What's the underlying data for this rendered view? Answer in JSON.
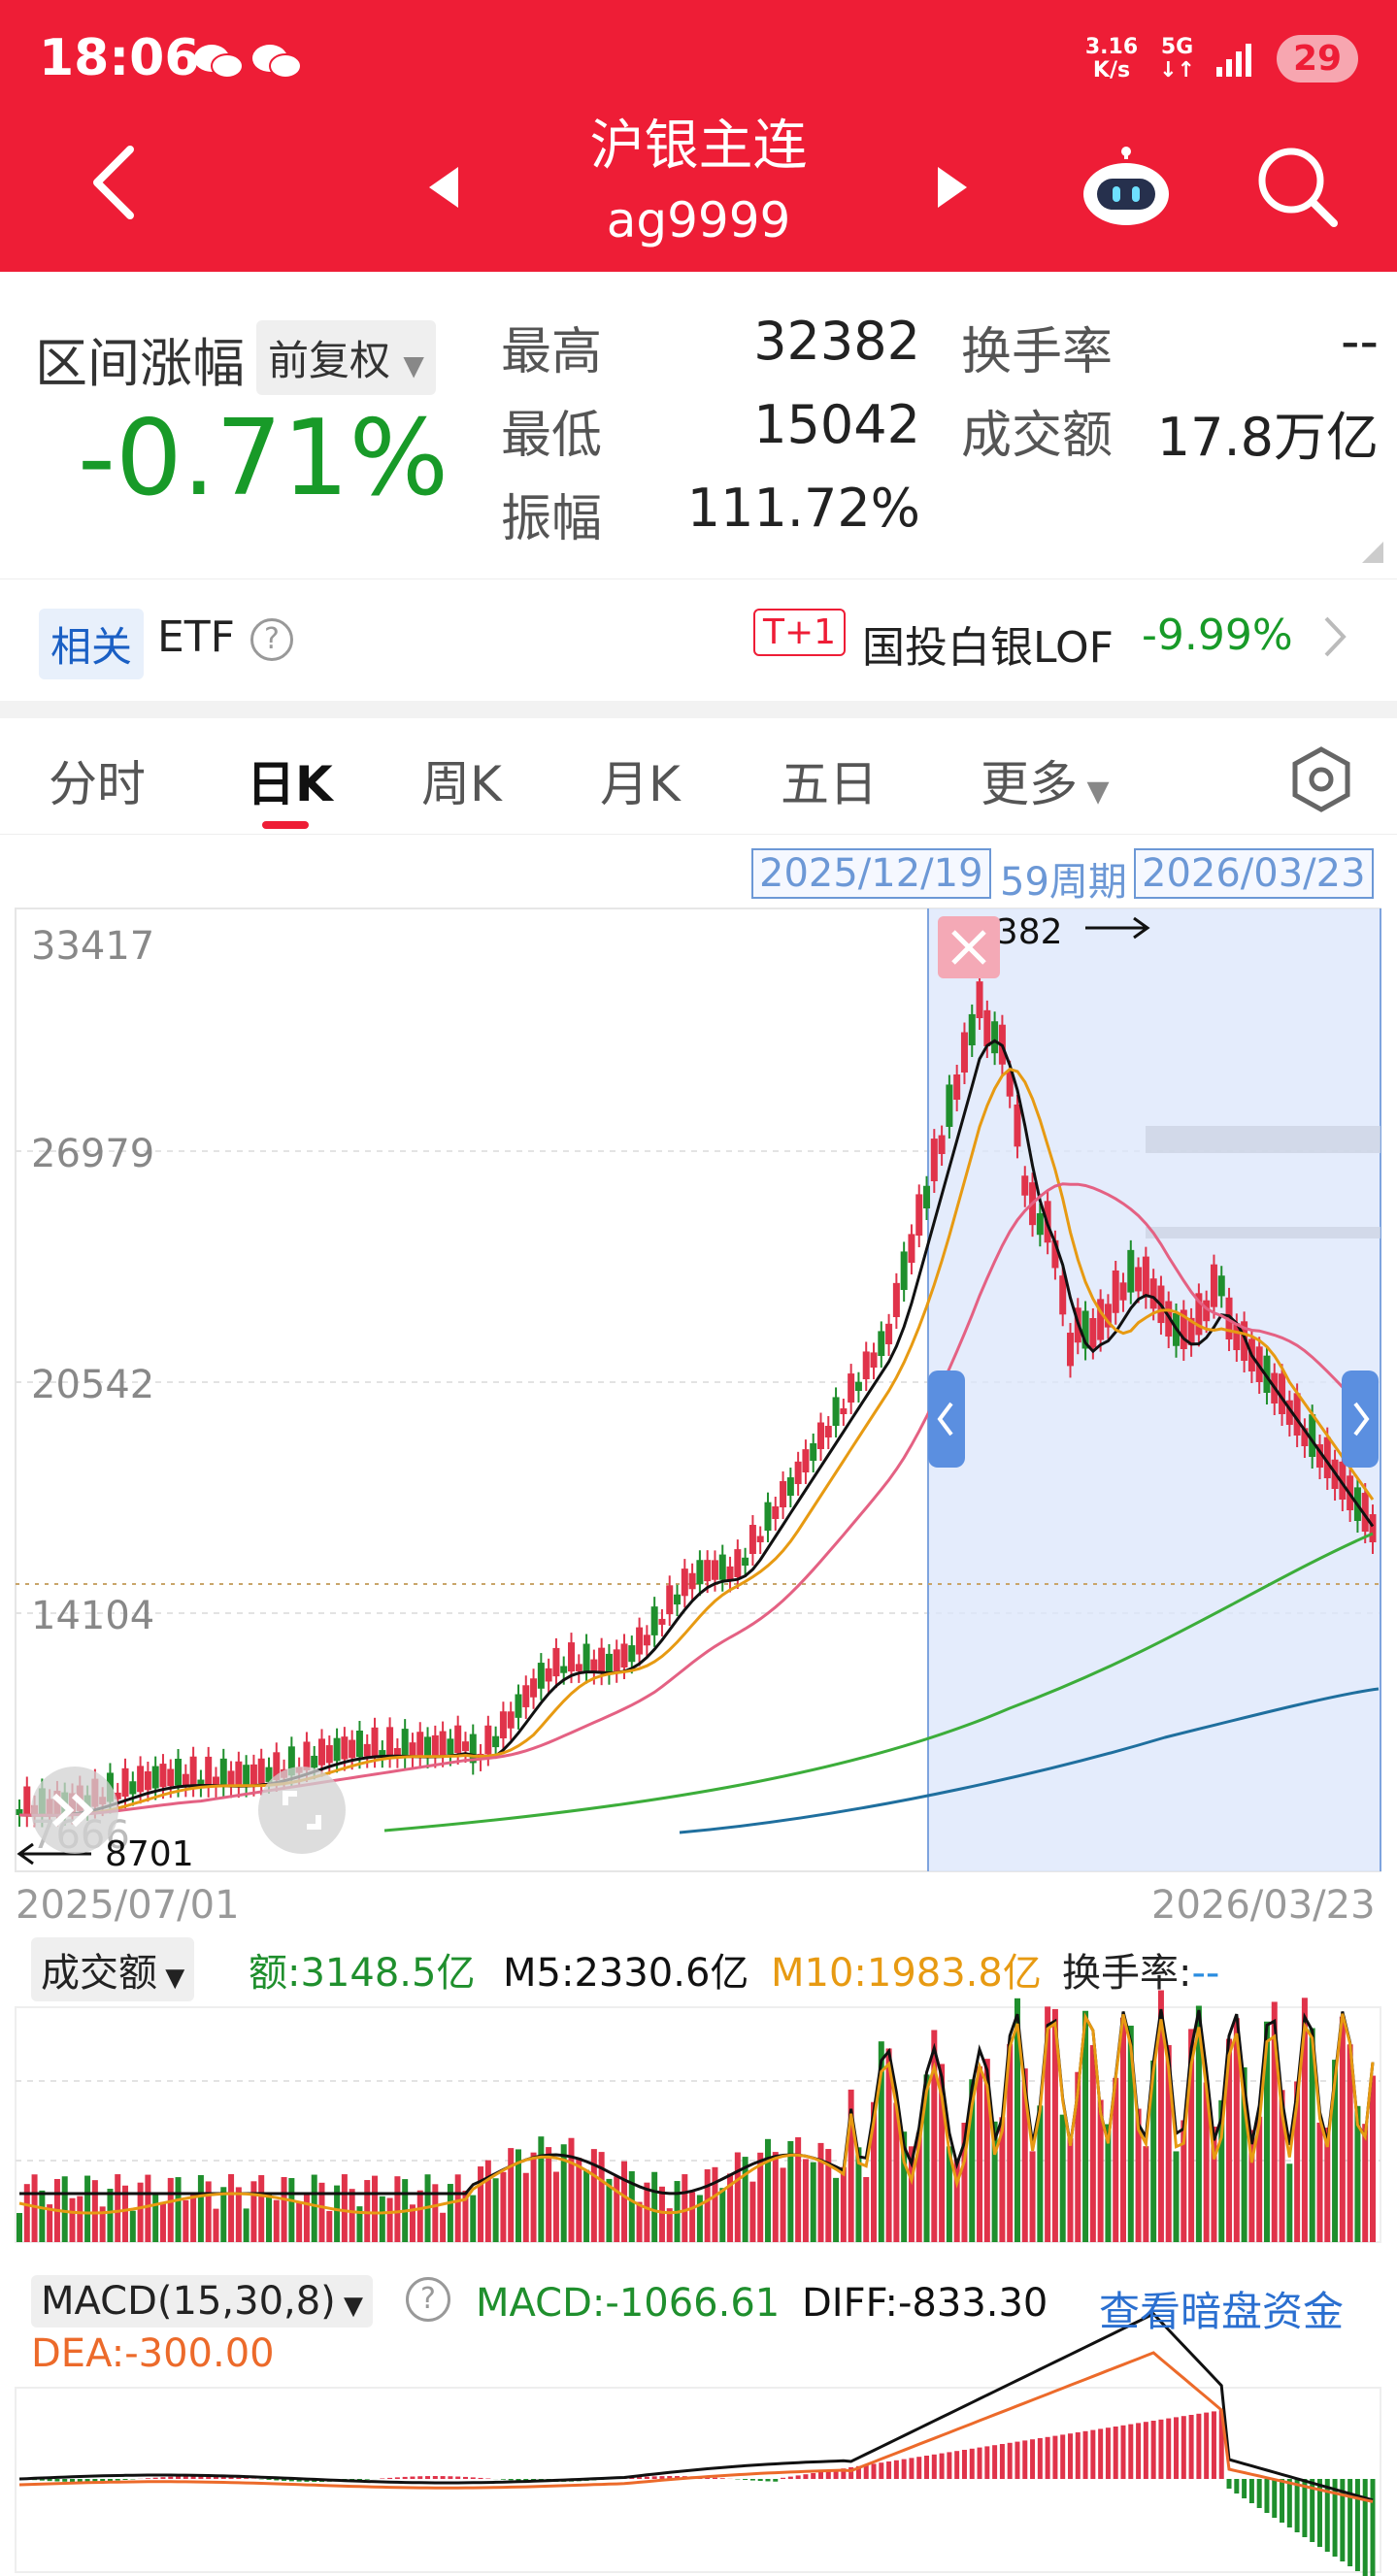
{
  "status_bar": {
    "time": "18:06",
    "net_speed_value": "3.16",
    "net_speed_unit": "K/s",
    "network": "5G",
    "battery": "29"
  },
  "header": {
    "title": "沪银主连",
    "code": "ag9999"
  },
  "stats": {
    "range_label": "区间涨幅",
    "adjust_mode": "前复权",
    "range_change": "-0.71%",
    "high_label": "最高",
    "high_value": "32382",
    "low_label": "最低",
    "low_value": "15042",
    "amplitude_label": "振幅",
    "amplitude_value": "111.72%",
    "turnover_rate_label": "换手率",
    "turnover_rate_value": "--",
    "amount_label": "成交额",
    "amount_value": "17.8万亿"
  },
  "etf": {
    "tag": "相关",
    "label": "ETF",
    "badge": "T+1",
    "name": "国投白银LOF",
    "change": "-9.99%"
  },
  "tabs": [
    "分时",
    "日K",
    "周K",
    "月K",
    "五日",
    "更多"
  ],
  "active_tab": "日K",
  "range_selector": {
    "start": "2025/12/19",
    "period": "59周期",
    "end": "2026/03/23"
  },
  "kline": {
    "y_ticks": [
      "33417",
      "26979",
      "20542",
      "14104",
      "7666"
    ],
    "max_marker": "32382",
    "min_marker": "8701",
    "x_start": "2025/07/01",
    "x_end": "2026/03/23",
    "colors": {
      "up": "#e0334a",
      "down": "#1f8f2d",
      "ma5": "#111111",
      "ma10": "#e79a12",
      "ma20": "#e46183",
      "ma60": "#3cad3a",
      "ma120": "#1f6f9e",
      "selection": "#dbe6fb"
    }
  },
  "volume": {
    "selector": "成交额",
    "amount_label": "额:",
    "amount_value": "3148.5亿",
    "m5": "M5:2330.6亿",
    "m10": "M10:1983.8亿",
    "turnover_label": "换手率:",
    "turnover_value": "--"
  },
  "macd": {
    "selector": "MACD(15,30,8)",
    "macd": "MACD:-1066.61",
    "diff": "DIFF:-833.30",
    "dea": "DEA:-300.00",
    "link": "查看暗盘资金"
  }
}
